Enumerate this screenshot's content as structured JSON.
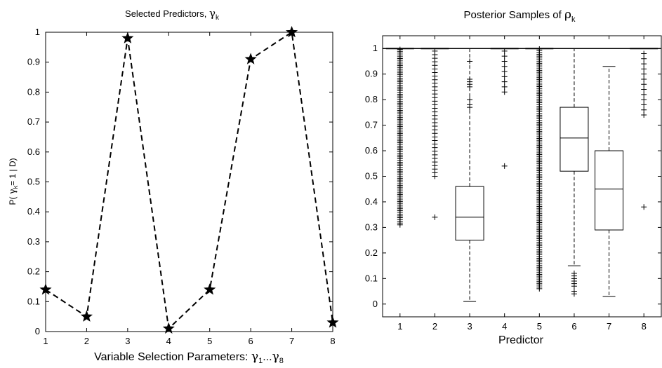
{
  "chart_data": [
    {
      "type": "line",
      "title_text": "Selected Predictors,",
      "title_symbol": "γ",
      "title_sub": "k",
      "ylabel": {
        "prefix": "P(",
        "symbol": "γ",
        "sub": "k",
        "suffix": "= 1 | D)"
      },
      "xlabel": {
        "text": "Variable Selection Parameters:",
        "sym1": "γ",
        "sub1": "1",
        "dots": "...",
        "sym2": "γ",
        "sub2": "8"
      },
      "x": [
        1,
        2,
        3,
        4,
        5,
        6,
        7,
        8
      ],
      "y": [
        0.14,
        0.05,
        0.98,
        0.01,
        0.14,
        0.91,
        1.0,
        0.03
      ],
      "xlim": [
        1,
        8
      ],
      "ylim": [
        0,
        1
      ],
      "xticks": [
        "1",
        "2",
        "3",
        "4",
        "5",
        "6",
        "7",
        "8"
      ],
      "yticks": [
        "0",
        "0.1",
        "0.2",
        "0.3",
        "0.4",
        "0.5",
        "0.6",
        "0.7",
        "0.8",
        "0.9",
        "1"
      ],
      "marker": "star",
      "line_style": "dashed",
      "color": "#000000",
      "grid": false
    },
    {
      "type": "box",
      "title_text": "Posterior Samples of",
      "title_symbol": "ρ",
      "title_sub": "k",
      "xlabel": "Predictor",
      "categories": [
        "1",
        "2",
        "3",
        "4",
        "5",
        "6",
        "7",
        "8"
      ],
      "ylim": [
        -0.05,
        1.05
      ],
      "yticks": [
        "0",
        "0.1",
        "0.2",
        "0.3",
        "0.4",
        "0.5",
        "0.6",
        "0.7",
        "0.8",
        "0.9",
        "1"
      ],
      "boxes": [
        {
          "category": "1",
          "q1": 1.0,
          "median": 1.0,
          "q3": 1.0,
          "whisker_low": 1.0,
          "whisker_high": 1.0,
          "outlier_range": [
            0.31,
            1.0
          ],
          "outlier_density": "dense"
        },
        {
          "category": "2",
          "q1": 1.0,
          "median": 1.0,
          "q3": 1.0,
          "whisker_low": 1.0,
          "whisker_high": 1.0,
          "outlier_range": [
            0.5,
            1.0
          ],
          "outlier_density": "medium",
          "extra_outliers": [
            0.34
          ]
        },
        {
          "category": "3",
          "q1": 0.25,
          "median": 0.34,
          "q3": 0.46,
          "whisker_low": 0.01,
          "whisker_high": 1.0,
          "outliers": [
            0.77,
            0.78,
            0.8,
            0.85,
            0.86,
            0.87,
            0.88,
            0.95
          ]
        },
        {
          "category": "4",
          "q1": 1.0,
          "median": 1.0,
          "q3": 1.0,
          "whisker_low": 1.0,
          "whisker_high": 1.0,
          "outlier_range": [
            0.83,
            1.0
          ],
          "outlier_density": "sparse",
          "extra_outliers": [
            0.54
          ]
        },
        {
          "category": "5",
          "q1": 1.0,
          "median": 1.0,
          "q3": 1.0,
          "whisker_low": 1.0,
          "whisker_high": 1.0,
          "outlier_range": [
            0.06,
            1.0
          ],
          "outlier_density": "dense"
        },
        {
          "category": "6",
          "q1": 0.52,
          "median": 0.65,
          "q3": 0.77,
          "whisker_low": 0.15,
          "whisker_high": 1.0,
          "outliers": [
            0.04,
            0.05,
            0.07,
            0.08,
            0.09,
            0.1,
            0.11,
            0.12
          ]
        },
        {
          "category": "7",
          "q1": 0.29,
          "median": 0.45,
          "q3": 0.6,
          "whisker_low": 0.03,
          "whisker_high": 0.93,
          "outliers": []
        },
        {
          "category": "8",
          "q1": 1.0,
          "median": 1.0,
          "q3": 1.0,
          "whisker_low": 1.0,
          "whisker_high": 1.0,
          "outlier_range": [
            0.74,
            1.0
          ],
          "outlier_density": "sparse",
          "extra_outliers": [
            0.38
          ]
        }
      ],
      "color": "#000000",
      "grid": false
    }
  ]
}
